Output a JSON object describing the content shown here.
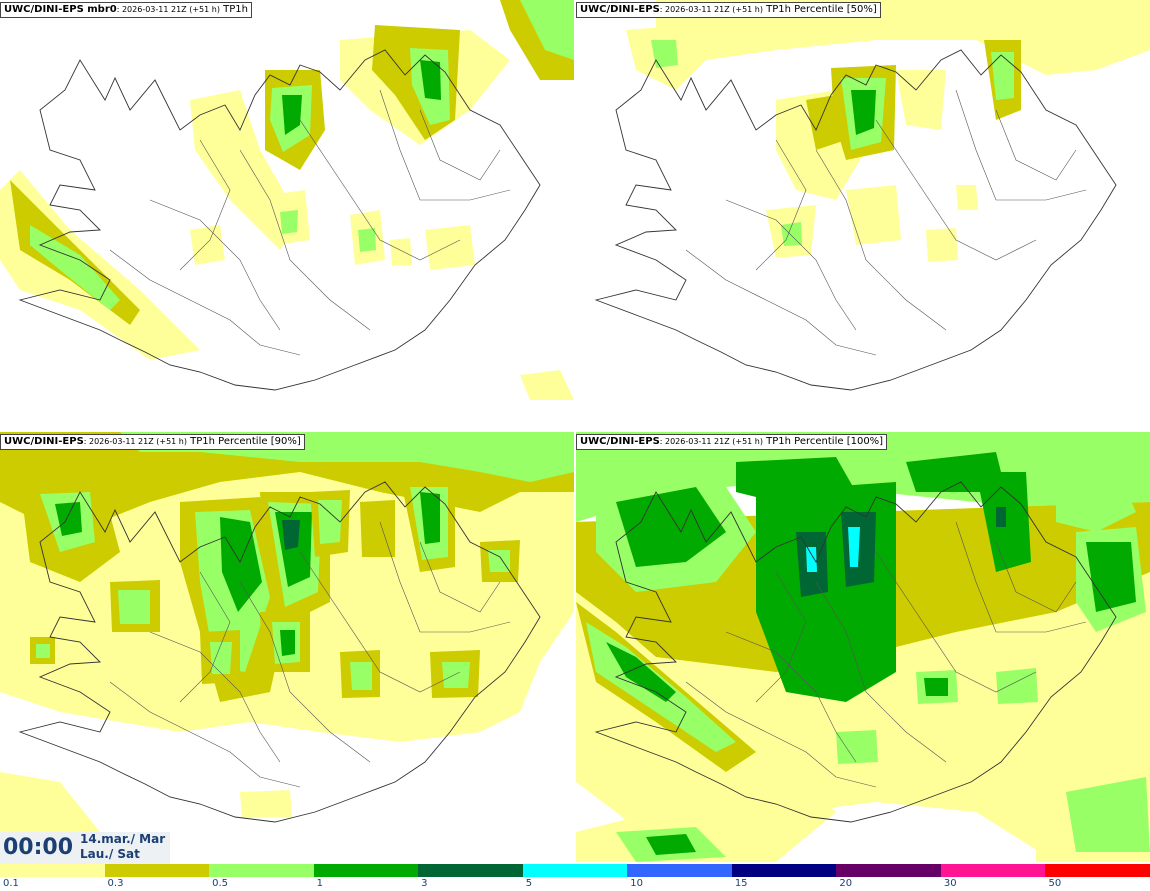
{
  "panels": [
    {
      "model": "UWC/DINI-EPS mbr0",
      "run": ": 2026-03-11 21Z (+51 h)",
      "field": " TP1h",
      "intensity": 1
    },
    {
      "model": "UWC/DINI-EPS",
      "run": ": 2026-03-11 21Z (+51 h)",
      "field": " TP1h Percentile [50%]",
      "intensity": 2
    },
    {
      "model": "UWC/DINI-EPS",
      "run": ": 2026-03-11 21Z (+51 h)",
      "field": " TP1h Percentile [90%]",
      "intensity": 3
    },
    {
      "model": "UWC/DINI-EPS",
      "run": ": 2026-03-11 21Z (+51 h)",
      "field": " TP1h Percentile [100%]",
      "intensity": 4
    }
  ],
  "valid_time": {
    "time": "00:00",
    "line1": "14.mar./ Mar",
    "line2": "Lau./ Sat"
  },
  "legend": {
    "labels": [
      "0.1",
      "0.3",
      "0.5",
      "1",
      "3",
      "5",
      "10",
      "15",
      "20",
      "30",
      "50"
    ],
    "colors": [
      "#ffff99",
      "#cccc00",
      "#99ff66",
      "#00aa00",
      "#006633",
      "#00ffff",
      "#3366ff",
      "#000080",
      "#660066",
      "#ff1493",
      "#ff0000"
    ]
  }
}
